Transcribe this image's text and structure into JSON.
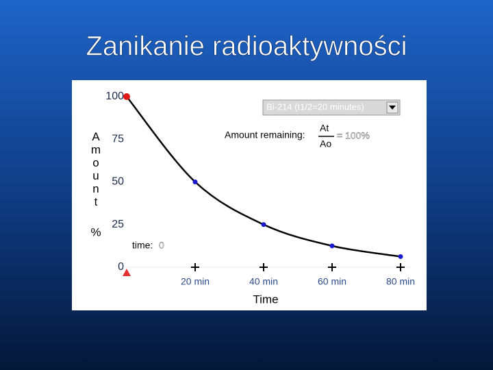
{
  "chart_data": {
    "type": "line",
    "title": "Zanikanie radioaktywności",
    "y_label": "Amount",
    "y_unit": "%",
    "x_label": "Time",
    "isotope": "Bi-214 (t1/2=20 minutes)",
    "amount_label": "Amount remaining:",
    "numerator": "At",
    "denominator": "Ao",
    "ratio": "= 100%",
    "time_label": "time:",
    "time_value": "0",
    "x": [
      0,
      20,
      40,
      60,
      80
    ],
    "values": [
      100,
      50,
      25,
      12.5,
      6.25
    ],
    "color": "#000000",
    "marker_color": "#1a1acc",
    "start_marker_color": "#e01818",
    "xlim": [
      0,
      80
    ],
    "ylim": [
      0,
      100
    ],
    "xticks": [
      {
        "value": 20,
        "label": "20 min"
      },
      {
        "value": 40,
        "label": "40 min"
      },
      {
        "value": 60,
        "label": "60 min"
      },
      {
        "value": 80,
        "label": "80 min"
      }
    ],
    "yticks": [
      0,
      25,
      50,
      75,
      100
    ]
  }
}
